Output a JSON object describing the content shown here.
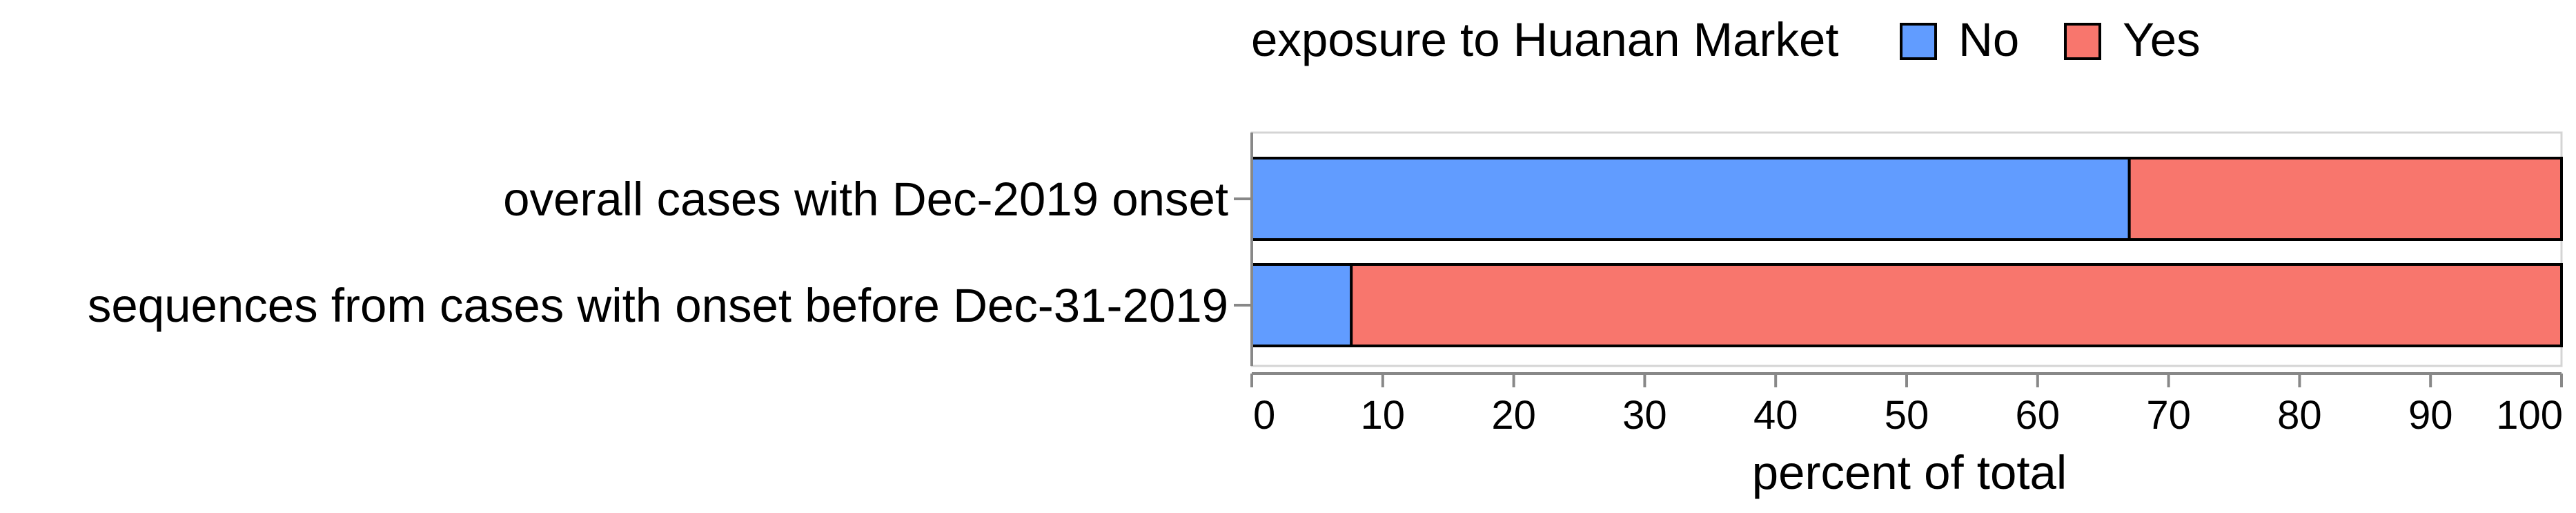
{
  "chart_data": {
    "type": "bar",
    "stacked": true,
    "orientation": "horizontal",
    "normalized": true,
    "categories": [
      "overall cases with Dec-2019 onset",
      "sequences from cases with onset before Dec-31-2019"
    ],
    "series": [
      {
        "name": "No",
        "values": [
          67.0,
          7.6
        ],
        "color": "#619CFF"
      },
      {
        "name": "Yes",
        "values": [
          33.0,
          92.4
        ],
        "color": "#F8766D"
      }
    ],
    "legend": {
      "title": "exposure to Huanan Market",
      "placement": "top",
      "entries": [
        "No",
        "Yes"
      ]
    },
    "xlabel": "percent of total",
    "ylabel": "",
    "xlim": [
      0,
      100
    ],
    "xticks": [
      0,
      10,
      20,
      30,
      40,
      50,
      60,
      70,
      80,
      90,
      100
    ],
    "xtick_labels": [
      "0",
      "10",
      "20",
      "30",
      "40",
      "50",
      "60",
      "70",
      "80",
      "90",
      "100"
    ],
    "grid": false
  }
}
